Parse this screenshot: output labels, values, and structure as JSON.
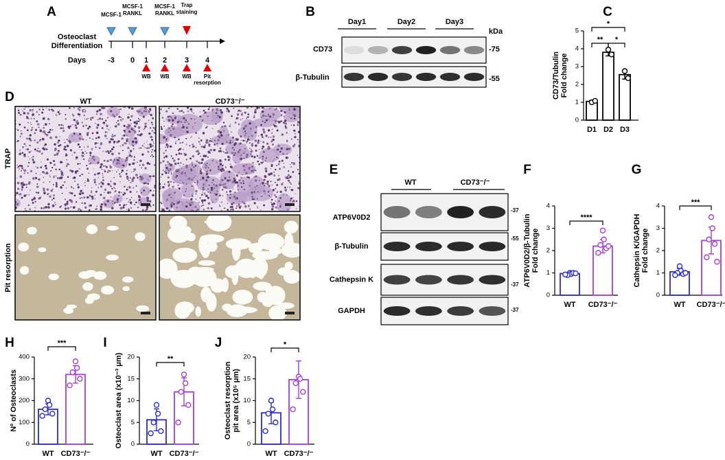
{
  "panel_labels": [
    "A",
    "B",
    "C",
    "D",
    "E",
    "F",
    "G",
    "H",
    "I",
    "J"
  ],
  "timeline": {
    "axis_label": [
      "Osteoclast",
      "Differentiation"
    ],
    "days_label": "Days",
    "days": [
      "-3",
      "0",
      "1",
      "2",
      "3",
      "4"
    ],
    "treatments": [
      [
        "MCSF-1"
      ],
      [
        "MCSF-1",
        "RANKL"
      ],
      [
        "MCSF-1",
        "RANKL"
      ]
    ],
    "staining": [
      "Trap",
      "staining"
    ],
    "wb": [
      "WB",
      "WB",
      "WB"
    ],
    "pit": [
      "Pit",
      "resorption"
    ]
  },
  "blot_b": {
    "lanes": [
      "Day1",
      "Day2",
      "Day3"
    ],
    "unit": "kDa",
    "rows": [
      {
        "label": "CD73",
        "marker": "-75"
      },
      {
        "label": "β-Tubulin",
        "marker": "-55"
      }
    ]
  },
  "micrographs": {
    "columns": [
      "WT",
      "CD73⁻/⁻"
    ],
    "rows": [
      "TRAP",
      "Pit resorption"
    ]
  },
  "blot_e": {
    "groups": [
      "WT",
      "CD73⁻/⁻"
    ],
    "rows": [
      {
        "label": "ATP6V0D2",
        "marker": "-37"
      },
      {
        "label": "β-Tubulin",
        "marker": "-55"
      },
      {
        "label": "Cathepsin K",
        "marker": "-37"
      },
      {
        "label": "GAPDH",
        "marker": "-37"
      }
    ]
  },
  "chart_data": [
    {
      "type": "bar",
      "ylabel": [
        "CD73/Tubulin",
        "Fold change"
      ],
      "categories": [
        "D1",
        "D2",
        "D3"
      ],
      "values": [
        1.05,
        3.8,
        2.55
      ],
      "errors": [
        0.05,
        0.2,
        0.25
      ],
      "points": [
        [
          1.0,
          1.08
        ],
        [
          3.95,
          3.68
        ],
        [
          2.75,
          2.35
        ]
      ],
      "colors": [
        "#000000",
        "#000000",
        "#000000"
      ],
      "ylim": [
        0,
        5
      ],
      "yticks": [
        0,
        1,
        2,
        3,
        4,
        5
      ],
      "significance": [
        "**",
        "*",
        "*"
      ]
    },
    {
      "type": "bar",
      "ylabel": [
        "ATP6V0D2/β-Tubulin",
        "Fold change"
      ],
      "categories": [
        "WT",
        "CD73⁻/⁻"
      ],
      "values": [
        0.97,
        2.2
      ],
      "errors": [
        0.07,
        0.3
      ],
      "points": [
        [
          1.0,
          0.95,
          0.9,
          1.0,
          0.93,
          0.98
        ],
        [
          2.9,
          2.5,
          2.25,
          2.1,
          1.9,
          2.2
        ]
      ],
      "colors": [
        "#2a2ad0",
        "#a43fd6"
      ],
      "ylim": [
        0,
        4
      ],
      "yticks": [
        0,
        1,
        2,
        3,
        4
      ],
      "significance": [
        "****"
      ]
    },
    {
      "type": "bar",
      "ylabel": [
        "Cathepsin K/GAPDH",
        "Fold change"
      ],
      "categories": [
        "WT",
        "CD73⁻/⁻"
      ],
      "values": [
        1.05,
        2.45
      ],
      "errors": [
        0.15,
        0.6
      ],
      "points": [
        [
          1.3,
          1.1,
          1.0,
          0.95,
          0.9,
          1.0
        ],
        [
          3.5,
          3.0,
          2.5,
          2.3,
          1.7,
          1.5
        ]
      ],
      "colors": [
        "#2a2ad0",
        "#a43fd6"
      ],
      "ylim": [
        0,
        4
      ],
      "yticks": [
        0,
        1,
        2,
        3,
        4
      ],
      "significance": [
        "***"
      ]
    },
    {
      "type": "bar",
      "ylabel": [
        "Nº of Osteoclasts"
      ],
      "categories": [
        "WT",
        "CD73⁻/⁻"
      ],
      "values": [
        160,
        320
      ],
      "errors": [
        25,
        40
      ],
      "points": [
        [
          200,
          180,
          160,
          140,
          130
        ],
        [
          380,
          350,
          330,
          300,
          270
        ]
      ],
      "colors": [
        "#2a2ad0",
        "#a43fd6"
      ],
      "ylim": [
        0,
        400
      ],
      "yticks": [
        0,
        100,
        200,
        300,
        400
      ],
      "significance": [
        "***"
      ]
    },
    {
      "type": "bar",
      "ylabel": [
        "Osteoclast area (x10⁻³ μm)"
      ],
      "categories": [
        "WT",
        "CD73⁻/⁻"
      ],
      "values": [
        5.6,
        12
      ],
      "errors": [
        2.5,
        3.2
      ],
      "points": [
        [
          9,
          7,
          5,
          3,
          2.5
        ],
        [
          16,
          14,
          12,
          9,
          5
        ]
      ],
      "colors": [
        "#2a2ad0",
        "#a43fd6"
      ],
      "ylim": [
        0,
        20
      ],
      "yticks": [
        0,
        5,
        10,
        15,
        20
      ],
      "significance": [
        "**"
      ]
    },
    {
      "type": "bar",
      "ylabel": [
        "Osteoclast resorption",
        "pit area (x10⁵ μm)"
      ],
      "categories": [
        "WT",
        "CD73⁻/⁻"
      ],
      "values": [
        7.2,
        14.8
      ],
      "errors": [
        2.5,
        4.3
      ],
      "points": [
        [
          10,
          8,
          7,
          5,
          3
        ],
        [
          15.5,
          15,
          14,
          12,
          8
        ]
      ],
      "colors": [
        "#2a2ad0",
        "#a43fd6"
      ],
      "ylim": [
        0,
        20
      ],
      "yticks": [
        0,
        5,
        10,
        15,
        20
      ],
      "significance": [
        "*"
      ]
    }
  ]
}
